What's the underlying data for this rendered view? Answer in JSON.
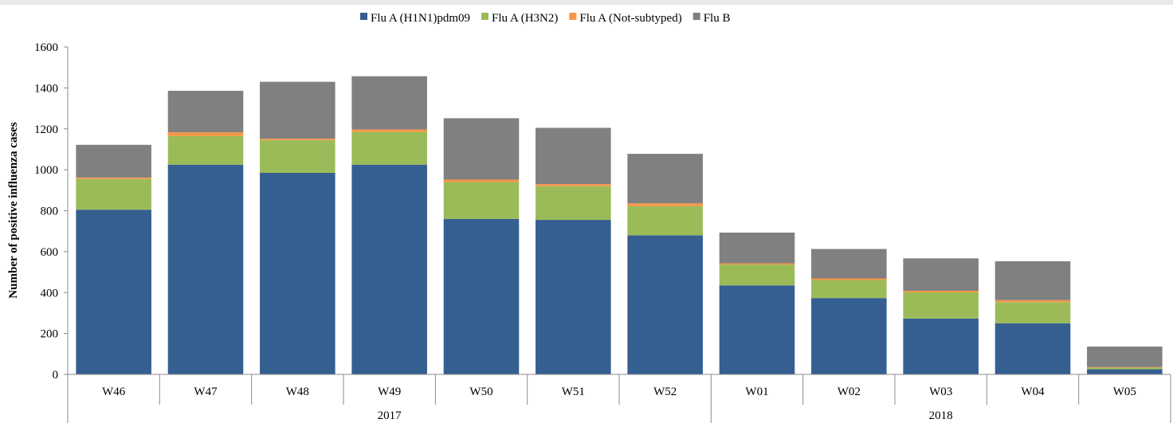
{
  "chart_data": {
    "type": "bar",
    "stacked": true,
    "title": "",
    "xlabel": "",
    "ylabel": "Number of positive influenza cases",
    "ylim": [
      0,
      1600
    ],
    "yticks": [
      0,
      200,
      400,
      600,
      800,
      1000,
      1200,
      1400,
      1600
    ],
    "grid": false,
    "legend_position": "top",
    "categories": [
      "W46",
      "W47",
      "W48",
      "W49",
      "W50",
      "W51",
      "W52",
      "W01",
      "W02",
      "W03",
      "W04",
      "W05"
    ],
    "groups": [
      {
        "label": "2017",
        "categories": [
          "W46",
          "W47",
          "W48",
          "W49",
          "W50",
          "W51",
          "W52"
        ]
      },
      {
        "label": "2018",
        "categories": [
          "W01",
          "W02",
          "W03",
          "W04",
          "W05"
        ]
      }
    ],
    "series": [
      {
        "name": "Flu A (H1N1)pdm09",
        "color": "#355f91",
        "values": [
          805,
          1025,
          985,
          1025,
          760,
          755,
          680,
          435,
          373,
          273,
          250,
          25
        ]
      },
      {
        "name": "Flu A (H3N2)",
        "color": "#9bbb59",
        "values": [
          150,
          140,
          160,
          160,
          180,
          165,
          142,
          102,
          88,
          128,
          103,
          8
        ]
      },
      {
        "name": "Flu A (Not-subtyped)",
        "color": "#f79646",
        "values": [
          7,
          18,
          7,
          12,
          12,
          10,
          14,
          6,
          8,
          8,
          10,
          3
        ]
      },
      {
        "name": "Flu B",
        "color": "#808080",
        "values": [
          160,
          203,
          278,
          260,
          300,
          275,
          242,
          150,
          144,
          158,
          190,
          100
        ]
      }
    ]
  }
}
